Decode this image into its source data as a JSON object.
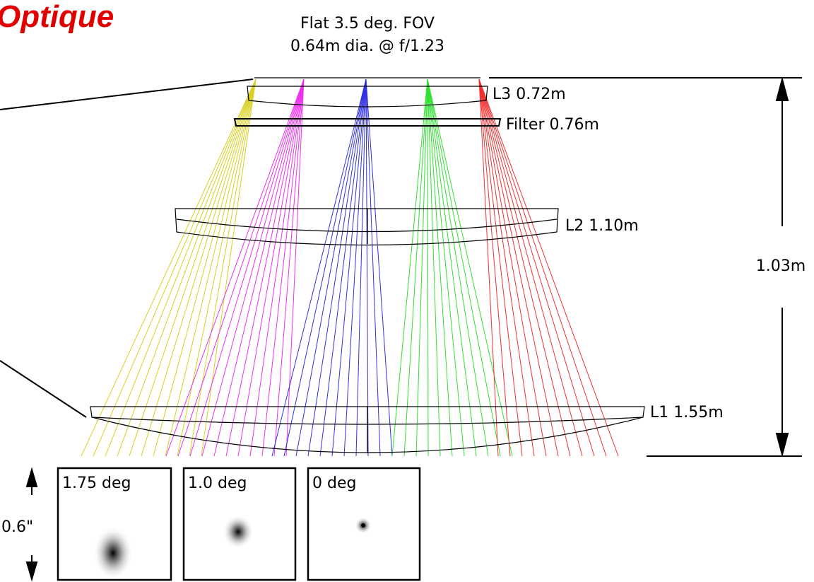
{
  "header": {
    "title": "Optique",
    "subtitle_line1": "Flat 3.5 deg. FOV",
    "subtitle_line2": "0.64m dia. @ f/1.23"
  },
  "elements": [
    {
      "label": "L3 0.72m"
    },
    {
      "label": "Filter 0.76m"
    },
    {
      "label": "L2 1.10m"
    },
    {
      "label": "L1 1.55m"
    }
  ],
  "dimension": {
    "label": "1.03m"
  },
  "spots": {
    "scale_label": "0.6\"",
    "panels": [
      {
        "label": "1.75 deg"
      },
      {
        "label": "1.0 deg"
      },
      {
        "label": "0 deg"
      }
    ]
  }
}
